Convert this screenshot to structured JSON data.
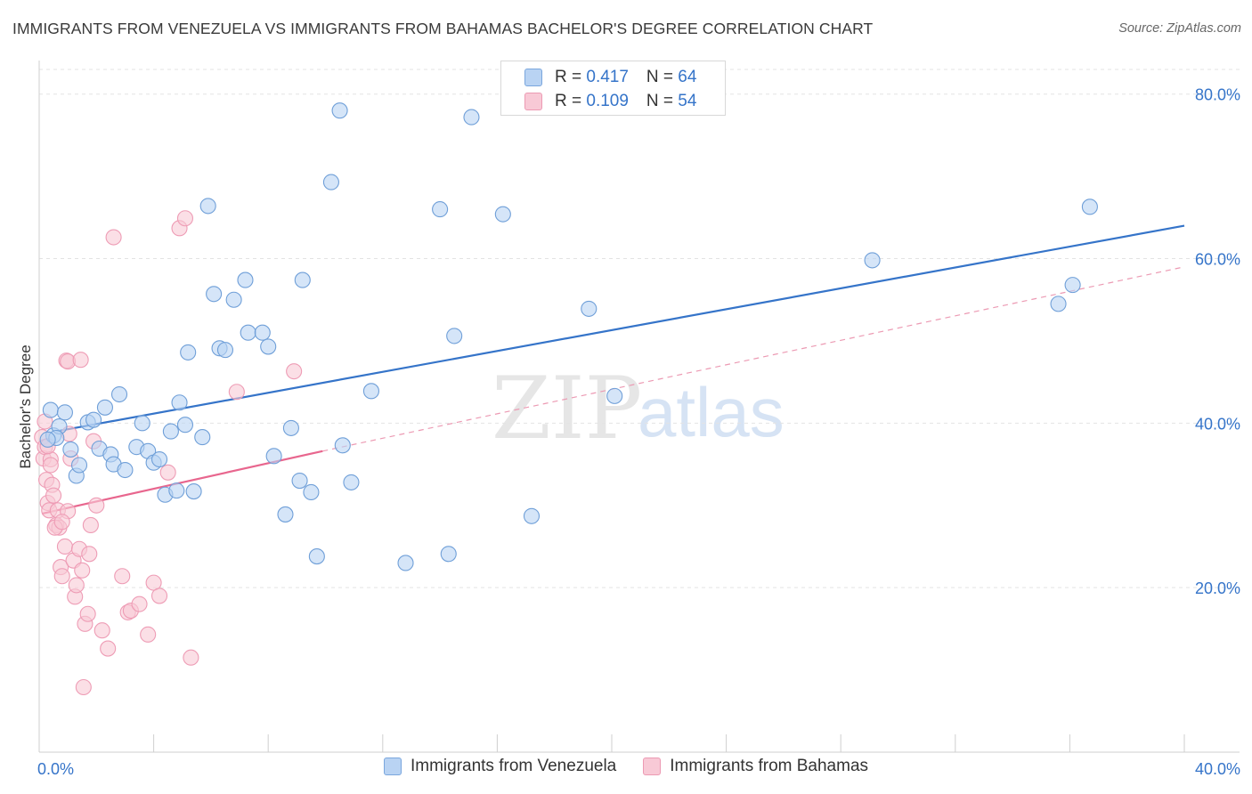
{
  "title": "IMMIGRANTS FROM VENEZUELA VS IMMIGRANTS FROM BAHAMAS BACHELOR'S DEGREE CORRELATION CHART",
  "source": "Source: ZipAtlas.com",
  "watermark": {
    "zip": "ZIP",
    "atlas": "atlas"
  },
  "colors": {
    "blue": "#3574c9",
    "blue_fill": "#b9d3f3",
    "pink": "#e8668e",
    "pink_fill": "#f8c9d6",
    "grid": "#e3e3e3",
    "tick_label": "#3574c9"
  },
  "legend_top": [
    {
      "r_label": "R = ",
      "r_value": "0.417",
      "n_label": "N = ",
      "n_value": "64"
    },
    {
      "r_label": "R = ",
      "r_value": "0.109",
      "n_label": "N = ",
      "n_value": "54"
    }
  ],
  "chart_data": {
    "type": "scatter",
    "title": "IMMIGRANTS FROM VENEZUELA VS IMMIGRANTS FROM BAHAMAS BACHELOR'S DEGREE CORRELATION CHART",
    "xlabel": "",
    "ylabel": "Bachelor's Degree",
    "xlim": [
      0,
      40
    ],
    "ylim": [
      0,
      83
    ],
    "x_tick_labels": [
      "0.0%",
      "40.0%"
    ],
    "y_ticks": [
      20,
      40,
      60,
      80
    ],
    "y_tick_labels": [
      "20.0%",
      "40.0%",
      "60.0%",
      "80.0%"
    ],
    "legend_position": "bottom-center",
    "series": [
      {
        "name": "Immigrants from Venezuela",
        "r": 0.417,
        "n": 64,
        "trend": {
          "x": [
            0.6,
            40.0
          ],
          "y": [
            39.0,
            64.0
          ]
        },
        "points": [
          [
            0.4,
            41.6
          ],
          [
            0.5,
            38.5
          ],
          [
            0.7,
            39.6
          ],
          [
            0.9,
            41.3
          ],
          [
            0.6,
            38.2
          ],
          [
            1.3,
            33.6
          ],
          [
            1.4,
            34.9
          ],
          [
            1.1,
            36.8
          ],
          [
            1.7,
            40.1
          ],
          [
            1.9,
            40.4
          ],
          [
            2.1,
            36.9
          ],
          [
            2.3,
            41.9
          ],
          [
            2.5,
            36.2
          ],
          [
            2.6,
            35.0
          ],
          [
            2.8,
            43.5
          ],
          [
            3.0,
            34.3
          ],
          [
            3.4,
            37.1
          ],
          [
            3.6,
            40.0
          ],
          [
            3.8,
            36.6
          ],
          [
            4.0,
            35.2
          ],
          [
            4.2,
            35.6
          ],
          [
            4.4,
            31.3
          ],
          [
            4.6,
            39.0
          ],
          [
            4.8,
            31.8
          ],
          [
            4.9,
            42.5
          ],
          [
            5.1,
            39.8
          ],
          [
            5.2,
            48.6
          ],
          [
            5.4,
            31.7
          ],
          [
            5.7,
            38.3
          ],
          [
            5.9,
            66.4
          ],
          [
            6.1,
            55.7
          ],
          [
            6.3,
            49.1
          ],
          [
            6.5,
            48.9
          ],
          [
            6.8,
            55.0
          ],
          [
            7.2,
            57.4
          ],
          [
            7.3,
            51.0
          ],
          [
            7.8,
            51.0
          ],
          [
            8.0,
            49.3
          ],
          [
            8.2,
            36.0
          ],
          [
            8.6,
            28.9
          ],
          [
            8.8,
            39.4
          ],
          [
            9.1,
            33.0
          ],
          [
            9.2,
            57.4
          ],
          [
            9.5,
            31.6
          ],
          [
            9.7,
            23.8
          ],
          [
            10.2,
            69.3
          ],
          [
            10.5,
            78.0
          ],
          [
            10.6,
            37.3
          ],
          [
            10.9,
            32.8
          ],
          [
            11.6,
            43.9
          ],
          [
            12.8,
            23.0
          ],
          [
            14.0,
            66.0
          ],
          [
            14.3,
            24.1
          ],
          [
            14.5,
            50.6
          ],
          [
            15.1,
            77.2
          ],
          [
            16.2,
            65.4
          ],
          [
            17.2,
            28.7
          ],
          [
            19.2,
            53.9
          ],
          [
            20.1,
            43.3
          ],
          [
            29.1,
            59.8
          ],
          [
            35.6,
            54.5
          ],
          [
            36.1,
            56.8
          ],
          [
            36.7,
            66.3
          ],
          [
            0.3,
            38.0
          ]
        ]
      },
      {
        "name": "Immigrants from Bahamas",
        "r": 0.109,
        "n": 54,
        "trend": {
          "x": [
            0.1,
            9.9
          ],
          "y": [
            29.0,
            36.6
          ]
        },
        "trend_extended": {
          "x": [
            9.9,
            40.0
          ],
          "y": [
            36.6,
            59.0
          ]
        },
        "points": [
          [
            0.1,
            38.3
          ],
          [
            0.15,
            35.7
          ],
          [
            0.2,
            37.1
          ],
          [
            0.25,
            33.1
          ],
          [
            0.3,
            30.3
          ],
          [
            0.35,
            29.4
          ],
          [
            0.4,
            35.6
          ],
          [
            0.45,
            32.5
          ],
          [
            0.5,
            31.2
          ],
          [
            0.6,
            27.6
          ],
          [
            0.7,
            27.3
          ],
          [
            0.75,
            22.5
          ],
          [
            0.8,
            21.4
          ],
          [
            0.9,
            25.0
          ],
          [
            0.95,
            47.6
          ],
          [
            1.0,
            47.5
          ],
          [
            1.05,
            38.7
          ],
          [
            1.1,
            35.7
          ],
          [
            1.2,
            23.3
          ],
          [
            1.25,
            18.9
          ],
          [
            1.3,
            20.3
          ],
          [
            1.4,
            24.7
          ],
          [
            1.45,
            47.7
          ],
          [
            1.5,
            22.1
          ],
          [
            1.55,
            7.9
          ],
          [
            1.6,
            15.6
          ],
          [
            1.7,
            16.8
          ],
          [
            1.75,
            24.1
          ],
          [
            1.8,
            27.6
          ],
          [
            1.9,
            37.8
          ],
          [
            2.0,
            30.0
          ],
          [
            2.2,
            14.8
          ],
          [
            2.4,
            12.6
          ],
          [
            2.6,
            62.6
          ],
          [
            2.9,
            21.4
          ],
          [
            3.1,
            17.0
          ],
          [
            3.2,
            17.2
          ],
          [
            3.5,
            18.0
          ],
          [
            3.8,
            14.3
          ],
          [
            4.0,
            20.6
          ],
          [
            4.2,
            19.0
          ],
          [
            4.5,
            34.0
          ],
          [
            4.9,
            63.7
          ],
          [
            5.1,
            64.9
          ],
          [
            5.3,
            11.5
          ],
          [
            6.9,
            43.8
          ],
          [
            8.9,
            46.3
          ],
          [
            0.55,
            27.3
          ],
          [
            0.65,
            29.4
          ],
          [
            0.3,
            37.2
          ],
          [
            0.2,
            40.2
          ],
          [
            0.4,
            34.9
          ],
          [
            1.0,
            29.3
          ],
          [
            0.8,
            28.0
          ]
        ]
      }
    ]
  },
  "legend_bottom": [
    {
      "label": "Immigrants from Venezuela"
    },
    {
      "label": "Immigrants from Bahamas"
    }
  ]
}
